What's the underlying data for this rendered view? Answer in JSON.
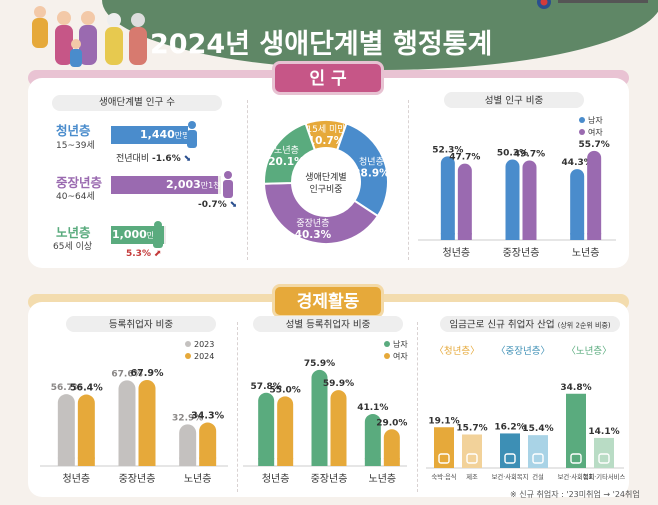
{
  "header": {
    "title": "2024년 생애단계별 행정통계"
  },
  "population": {
    "section_title": "인 구",
    "count_panel": {
      "title": "생애단계별 인구 수",
      "groups": [
        {
          "name": "청년층",
          "age": "15~39세",
          "value": "1,440",
          "unit": "만명",
          "delta_label": "전년대비",
          "delta": "-1.6",
          "delta_unit": "%",
          "color": "#4a8ccc"
        },
        {
          "name": "중장년층",
          "age": "40~64세",
          "value": "2,003",
          "unit": "만1천명",
          "delta_label": "",
          "delta": "-0.7",
          "delta_unit": "%",
          "color": "#9a6ab0"
        },
        {
          "name": "노년층",
          "age": "65세 이상",
          "value": "1,000",
          "unit": "만명",
          "delta_label": "",
          "delta": "5.3",
          "delta_unit": "%",
          "color": "#5aab7e"
        }
      ]
    }
  },
  "economy": {
    "section_title": "경제활동",
    "note": "※ 신규 취업자 : '23미취업 → '24취업"
  },
  "chart_data": [
    {
      "type": "bar",
      "title": "생애단계별 인구 수",
      "categories": [
        "청년층",
        "중장년층",
        "노년층"
      ],
      "values": [
        1440,
        2003.1,
        1000
      ],
      "units": "만명",
      "delta_pct": [
        -1.6,
        -0.7,
        5.3
      ]
    },
    {
      "type": "pie",
      "center_label": [
        "생애단계별",
        "인구비중"
      ],
      "slices": [
        {
          "label": "청년층",
          "value": 28.9,
          "color": "#4a8ccc"
        },
        {
          "label": "중장년층",
          "value": 40.3,
          "color": "#9a6ab0"
        },
        {
          "label": "노년층",
          "value": 20.1,
          "color": "#5aab7e"
        },
        {
          "label": "15세 미만",
          "value": 10.7,
          "color": "#e6a93a"
        }
      ]
    },
    {
      "type": "bar",
      "title": "성별 인구 비중",
      "categories": [
        "청년층",
        "중장년층",
        "노년층"
      ],
      "series": [
        {
          "name": "남자",
          "values": [
            52.3,
            50.3,
            44.3
          ],
          "color": "#4a8ccc"
        },
        {
          "name": "여자",
          "values": [
            47.7,
            49.7,
            55.7
          ],
          "color": "#9a6ab0"
        }
      ],
      "ylim": [
        0,
        70
      ],
      "legend": "top-right"
    },
    {
      "type": "bar",
      "title": "등록취업자 비중",
      "categories": [
        "청년층",
        "중장년층",
        "노년층"
      ],
      "series": [
        {
          "name": "2023",
          "values": [
            56.7,
            67.6,
            32.9
          ],
          "color": "#c4c1bf"
        },
        {
          "name": "2024",
          "values": [
            56.4,
            67.9,
            34.3
          ],
          "color": "#e6a93a"
        }
      ],
      "ylim": [
        0,
        90
      ],
      "legend": "top-right"
    },
    {
      "type": "bar",
      "title": "성별 등록취업자 비중",
      "categories": [
        "청년층",
        "중장년층",
        "노년층"
      ],
      "series": [
        {
          "name": "남자",
          "values": [
            57.8,
            75.9,
            41.1
          ],
          "color": "#5aab7e"
        },
        {
          "name": "여자",
          "values": [
            55.0,
            59.9,
            29.0
          ],
          "color": "#e6a93a"
        }
      ],
      "ylim": [
        0,
        90
      ],
      "legend": "top-right"
    },
    {
      "type": "bar",
      "title": "임금근로 신규 취업자 산업",
      "subtitle": "(상위 2순위 비중)",
      "groups": [
        {
          "name": "〈청년층〉",
          "color": "#e6a93a",
          "bars": [
            {
              "label": "숙박·음식",
              "value": 19.1,
              "color": "#e6a93a"
            },
            {
              "label": "제조",
              "value": 15.7,
              "color": "#f2d29a"
            }
          ]
        },
        {
          "name": "〈중장년층〉",
          "color": "#3d8fb5",
          "bars": [
            {
              "label": "보건·사회복지",
              "value": 16.2,
              "color": "#3d8fb5"
            },
            {
              "label": "건설",
              "value": 15.4,
              "color": "#a9d3e6"
            }
          ]
        },
        {
          "name": "〈노년층〉",
          "color": "#5aab7e",
          "bars": [
            {
              "label": "보건·사회복지",
              "value": 34.8,
              "color": "#5aab7e"
            },
            {
              "label": "협회·기타서비스",
              "value": 14.1,
              "color": "#b9dcc5"
            }
          ]
        }
      ],
      "ylim": [
        0,
        45
      ]
    }
  ]
}
